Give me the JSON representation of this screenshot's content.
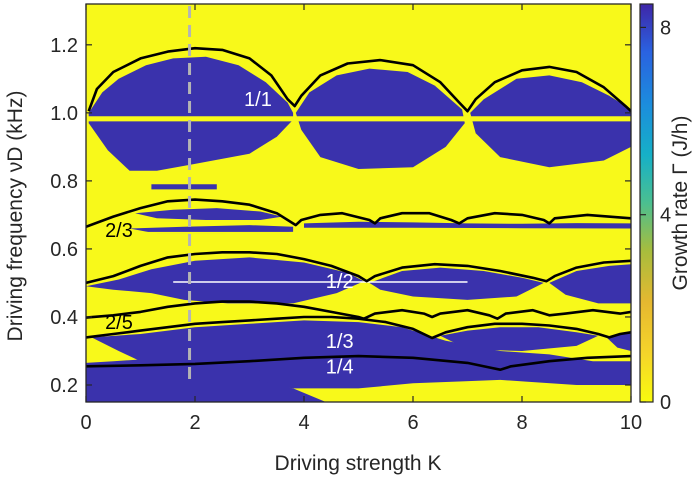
{
  "chart_data": {
    "type": "heatmap",
    "xlabel": "Driving strength K",
    "ylabel": "Driving frequency νD (kHz)",
    "xlim": [
      0,
      10
    ],
    "ylim": [
      0.15,
      1.32
    ],
    "xticks": [
      "0",
      "2",
      "4",
      "6",
      "8",
      "10"
    ],
    "xtick_values": [
      0,
      2,
      4,
      6,
      8,
      10
    ],
    "yticks": [
      "0.2",
      "0.4",
      "0.6",
      "0.8",
      "1.0",
      "1.2"
    ],
    "ytick_values": [
      0.2,
      0.4,
      0.6,
      0.8,
      1.0,
      1.2
    ],
    "colorbar": {
      "label": "Growth rate Γ (J/h)",
      "range": [
        0,
        8.5
      ],
      "ticks": [
        "0",
        "4",
        "8"
      ],
      "tick_values": [
        0,
        4,
        8
      ]
    },
    "colors": {
      "stable": "#f8f91a",
      "unstable": "#3a32ac",
      "boundary": "#000000",
      "marker": "#b4b4b4"
    },
    "vertical_marker": {
      "x": 1.9,
      "style": "dashed"
    },
    "resonance_labels": [
      {
        "text": "1/1",
        "x": 2.9,
        "y": 1.04,
        "color": "#ffffff"
      },
      {
        "text": "2/3",
        "x": 0.35,
        "y": 0.655,
        "color": "#000000"
      },
      {
        "text": "1/2",
        "x": 4.4,
        "y": 0.505,
        "color": "#ffffff"
      },
      {
        "text": "2/5",
        "x": 0.35,
        "y": 0.385,
        "color": "#000000"
      },
      {
        "text": "1/3",
        "x": 4.4,
        "y": 0.33,
        "color": "#ffffff"
      },
      {
        "text": "1/4",
        "x": 4.4,
        "y": 0.255,
        "color": "#ffffff"
      }
    ],
    "series": [
      {
        "values": [
          [
            0.05,
            1.005
          ],
          [
            0.2,
            1.07
          ],
          [
            0.5,
            1.12
          ],
          [
            1.0,
            1.16
          ],
          [
            1.5,
            1.18
          ],
          [
            2.0,
            1.19
          ],
          [
            2.5,
            1.185
          ],
          [
            3.0,
            1.16
          ],
          [
            3.4,
            1.11
          ],
          [
            3.7,
            1.04
          ],
          [
            3.83,
            1.02
          ],
          [
            3.95,
            1.05
          ],
          [
            4.3,
            1.11
          ],
          [
            4.8,
            1.145
          ],
          [
            5.4,
            1.155
          ],
          [
            6.0,
            1.14
          ],
          [
            6.5,
            1.09
          ],
          [
            6.85,
            1.03
          ],
          [
            7.0,
            1.005
          ],
          [
            7.15,
            1.04
          ],
          [
            7.5,
            1.09
          ],
          [
            8.0,
            1.125
          ],
          [
            8.5,
            1.135
          ],
          [
            9.0,
            1.12
          ],
          [
            9.5,
            1.075
          ],
          [
            9.9,
            1.02
          ],
          [
            10.0,
            1.005
          ]
        ]
      },
      {
        "values": [
          [
            0.0,
            0.665
          ],
          [
            0.5,
            0.695
          ],
          [
            1.0,
            0.72
          ],
          [
            1.5,
            0.74
          ],
          [
            2.0,
            0.745
          ],
          [
            2.5,
            0.74
          ],
          [
            3.0,
            0.73
          ],
          [
            3.5,
            0.705
          ],
          [
            3.85,
            0.67
          ],
          [
            3.95,
            0.685
          ],
          [
            4.3,
            0.7
          ],
          [
            4.7,
            0.705
          ],
          [
            5.2,
            0.685
          ],
          [
            5.3,
            0.675
          ],
          [
            5.4,
            0.69
          ],
          [
            5.8,
            0.705
          ],
          [
            6.3,
            0.705
          ],
          [
            6.7,
            0.685
          ],
          [
            6.85,
            0.675
          ],
          [
            7.0,
            0.69
          ],
          [
            7.5,
            0.705
          ],
          [
            8.0,
            0.7
          ],
          [
            8.4,
            0.685
          ],
          [
            8.5,
            0.675
          ],
          [
            8.6,
            0.69
          ],
          [
            9.2,
            0.7
          ],
          [
            10.0,
            0.69
          ]
        ]
      },
      {
        "values": [
          [
            0.0,
            0.5
          ],
          [
            0.5,
            0.52
          ],
          [
            1.0,
            0.55
          ],
          [
            1.5,
            0.575
          ],
          [
            2.0,
            0.585
          ],
          [
            2.5,
            0.59
          ],
          [
            3.0,
            0.59
          ],
          [
            3.5,
            0.585
          ],
          [
            4.0,
            0.57
          ],
          [
            4.5,
            0.55
          ],
          [
            5.0,
            0.52
          ],
          [
            5.15,
            0.505
          ],
          [
            5.3,
            0.52
          ],
          [
            5.8,
            0.545
          ],
          [
            6.4,
            0.555
          ],
          [
            7.0,
            0.55
          ],
          [
            7.6,
            0.535
          ],
          [
            8.2,
            0.515
          ],
          [
            8.45,
            0.505
          ],
          [
            8.6,
            0.52
          ],
          [
            9.0,
            0.545
          ],
          [
            9.5,
            0.56
          ],
          [
            10.0,
            0.565
          ]
        ]
      },
      {
        "values": [
          [
            0.0,
            0.398
          ],
          [
            0.5,
            0.405
          ],
          [
            1.0,
            0.415
          ],
          [
            1.5,
            0.43
          ],
          [
            2.0,
            0.44
          ],
          [
            2.5,
            0.445
          ],
          [
            3.0,
            0.445
          ],
          [
            3.5,
            0.44
          ],
          [
            4.0,
            0.43
          ],
          [
            4.5,
            0.415
          ],
          [
            5.0,
            0.4
          ],
          [
            5.1,
            0.395
          ],
          [
            5.3,
            0.41
          ],
          [
            5.8,
            0.42
          ],
          [
            6.2,
            0.41
          ],
          [
            6.35,
            0.4
          ],
          [
            6.5,
            0.41
          ],
          [
            7.0,
            0.42
          ],
          [
            7.4,
            0.405
          ],
          [
            7.55,
            0.395
          ],
          [
            7.7,
            0.41
          ],
          [
            8.2,
            0.42
          ],
          [
            8.5,
            0.405
          ],
          [
            8.8,
            0.41
          ],
          [
            9.3,
            0.42
          ],
          [
            9.8,
            0.41
          ],
          [
            10.0,
            0.415
          ]
        ]
      },
      {
        "values": [
          [
            0.0,
            0.34
          ],
          [
            0.5,
            0.35
          ],
          [
            1.0,
            0.36
          ],
          [
            1.5,
            0.37
          ],
          [
            2.0,
            0.38
          ],
          [
            2.5,
            0.385
          ],
          [
            3.0,
            0.39
          ],
          [
            3.5,
            0.395
          ],
          [
            4.0,
            0.4
          ],
          [
            4.5,
            0.4
          ],
          [
            5.0,
            0.395
          ],
          [
            5.5,
            0.385
          ],
          [
            6.0,
            0.365
          ],
          [
            6.35,
            0.338
          ],
          [
            6.6,
            0.355
          ],
          [
            7.0,
            0.37
          ],
          [
            7.5,
            0.38
          ],
          [
            8.0,
            0.38
          ],
          [
            8.5,
            0.375
          ],
          [
            9.0,
            0.365
          ],
          [
            9.4,
            0.35
          ],
          [
            9.6,
            0.34
          ],
          [
            9.8,
            0.35
          ],
          [
            10.0,
            0.355
          ]
        ]
      },
      {
        "values": [
          [
            0.0,
            0.255
          ],
          [
            1.0,
            0.258
          ],
          [
            2.0,
            0.262
          ],
          [
            3.0,
            0.27
          ],
          [
            4.0,
            0.28
          ],
          [
            5.0,
            0.285
          ],
          [
            6.0,
            0.28
          ],
          [
            7.0,
            0.265
          ],
          [
            7.45,
            0.25
          ],
          [
            7.6,
            0.245
          ],
          [
            7.8,
            0.255
          ],
          [
            8.5,
            0.27
          ],
          [
            9.2,
            0.28
          ],
          [
            10.0,
            0.285
          ]
        ]
      }
    ]
  }
}
